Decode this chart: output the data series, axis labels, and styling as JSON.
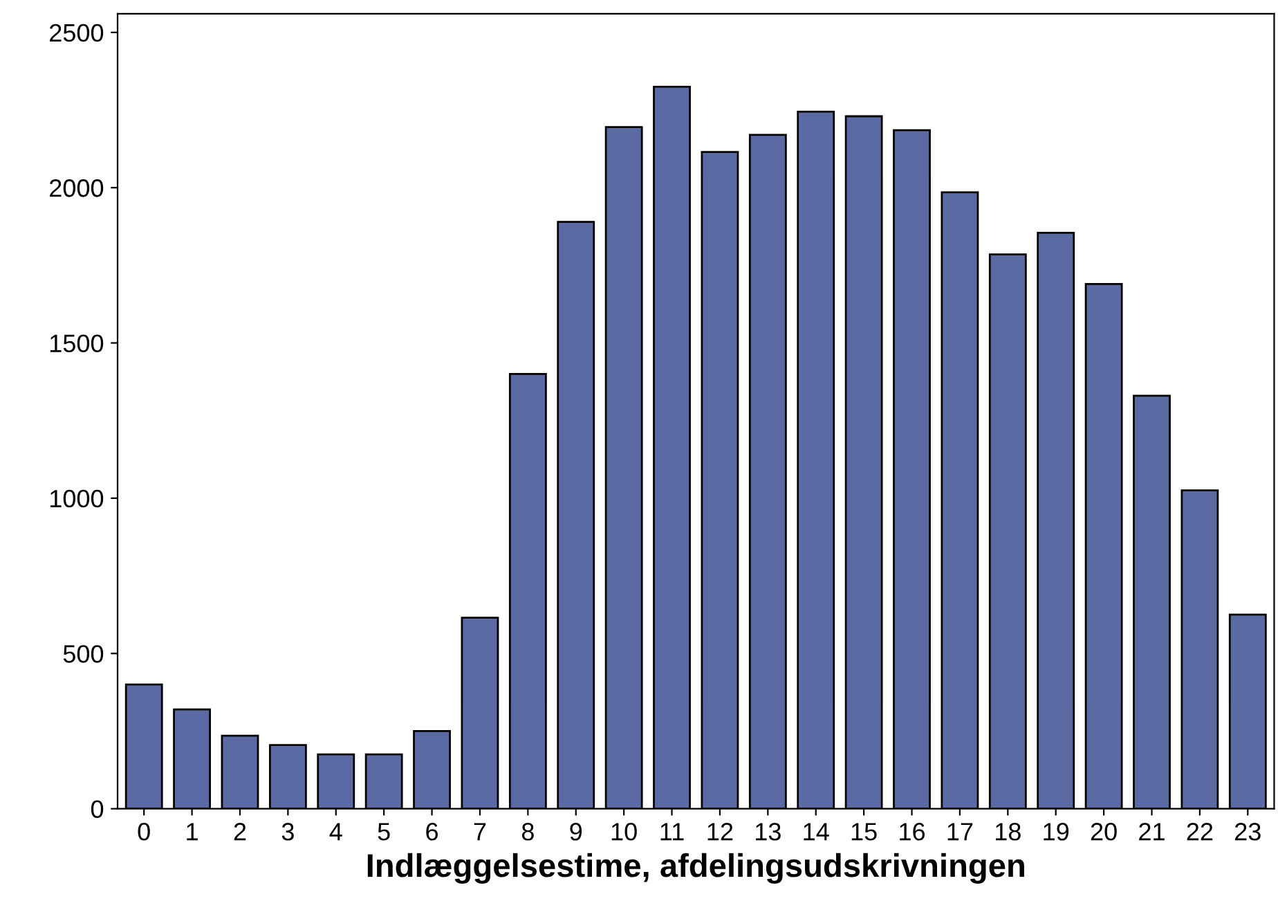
{
  "chart_data": {
    "type": "bar",
    "xlabel": "Indlæggelsestime, afdelingsudskrivningen",
    "categories": [
      "0",
      "1",
      "2",
      "3",
      "4",
      "5",
      "6",
      "7",
      "8",
      "9",
      "10",
      "11",
      "12",
      "13",
      "14",
      "15",
      "16",
      "17",
      "18",
      "19",
      "20",
      "21",
      "22",
      "23"
    ],
    "values": [
      400,
      320,
      235,
      205,
      175,
      175,
      250,
      615,
      1400,
      1890,
      2195,
      2325,
      2115,
      2170,
      2245,
      2230,
      2185,
      1985,
      1785,
      1855,
      1690,
      1330,
      1025,
      625
    ],
    "color": "#5b6aa3",
    "ylim": [
      0,
      2560
    ],
    "yticks": [
      0,
      500,
      1000,
      1500,
      2000,
      2500
    ],
    "grid": false,
    "legend": false
  }
}
